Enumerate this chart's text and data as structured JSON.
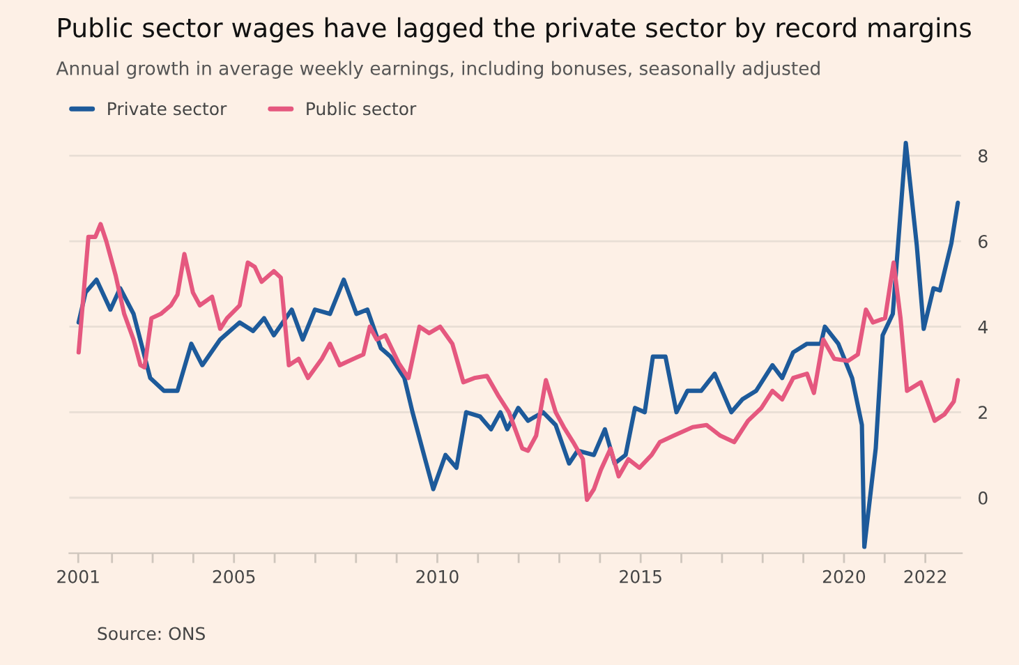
{
  "chart_data": {
    "type": "line",
    "title": "Public sector wages have lagged the private sector by record margins",
    "subtitle": "Annual growth in average weekly earnings, including bonuses, seasonally adjusted",
    "series": [
      {
        "name": "Private sector",
        "color": "#1d5a9a",
        "x": [
          2001.18,
          2001.35,
          2001.62,
          2001.96,
          2002.2,
          2002.53,
          2002.94,
          2003.28,
          2003.61,
          2003.95,
          2004.22,
          2004.66,
          2005.14,
          2005.47,
          2005.74,
          2005.98,
          2006.42,
          2006.69,
          2006.99,
          2007.36,
          2007.7,
          2008.01,
          2008.28,
          2008.61,
          2008.85,
          2009.19,
          2009.39,
          2009.7,
          2009.9,
          2010.2,
          2010.47,
          2010.71,
          2011.05,
          2011.32,
          2011.55,
          2011.72,
          2011.99,
          2012.23,
          2012.6,
          2012.91,
          2013.24,
          2013.45,
          2013.85,
          2014.12,
          2014.36,
          2014.63,
          2014.86,
          2015.1,
          2015.3,
          2015.61,
          2015.88,
          2016.15,
          2016.49,
          2016.82,
          2017.23,
          2017.5,
          2017.84,
          2018.24,
          2018.48,
          2018.75,
          2019.09,
          2019.43,
          2019.53,
          2019.86,
          2020.2,
          2020.44,
          2020.5,
          2020.78,
          2020.95,
          2021.2,
          2021.52,
          2021.79,
          2021.96,
          2022.2,
          2022.36,
          2022.64,
          2022.8
        ],
        "values": [
          4.1,
          4.8,
          5.1,
          4.4,
          4.9,
          4.3,
          2.8,
          2.5,
          2.5,
          3.6,
          3.1,
          3.7,
          4.1,
          3.9,
          4.2,
          3.8,
          4.4,
          3.7,
          4.4,
          4.3,
          5.1,
          4.3,
          4.4,
          3.5,
          3.3,
          2.8,
          2.0,
          0.9,
          0.2,
          1.0,
          0.7,
          2.0,
          1.9,
          1.6,
          2.0,
          1.6,
          2.1,
          1.8,
          2.0,
          1.7,
          0.8,
          1.1,
          1.0,
          1.6,
          0.8,
          1.0,
          2.1,
          2.0,
          3.3,
          3.3,
          2.0,
          2.5,
          2.5,
          2.9,
          2.0,
          2.3,
          2.5,
          3.1,
          2.8,
          3.4,
          3.6,
          3.6,
          4.0,
          3.6,
          2.8,
          1.7,
          -1.15,
          1.15,
          3.8,
          4.3,
          8.3,
          5.9,
          3.95,
          4.9,
          4.85,
          5.95,
          6.9
        ]
      },
      {
        "name": "Public sector",
        "color": "#e5587f",
        "x": [
          2001.18,
          2001.42,
          2001.59,
          2001.72,
          2001.86,
          2002.09,
          2002.3,
          2002.53,
          2002.7,
          2002.8,
          2002.97,
          2003.2,
          2003.45,
          2003.61,
          2003.78,
          2003.99,
          2004.16,
          2004.46,
          2004.66,
          2004.83,
          2005.14,
          2005.34,
          2005.51,
          2005.68,
          2005.98,
          2006.15,
          2006.35,
          2006.59,
          2006.82,
          2007.16,
          2007.36,
          2007.6,
          2007.94,
          2008.18,
          2008.34,
          2008.51,
          2008.72,
          2009.05,
          2009.29,
          2009.56,
          2009.8,
          2010.07,
          2010.37,
          2010.64,
          2010.91,
          2011.22,
          2011.49,
          2011.76,
          2012.09,
          2012.23,
          2012.43,
          2012.67,
          2012.91,
          2013.11,
          2013.34,
          2013.58,
          2013.68,
          2013.85,
          2014.02,
          2014.26,
          2014.46,
          2014.7,
          2014.97,
          2015.27,
          2015.47,
          2015.81,
          2016.28,
          2016.62,
          2016.96,
          2017.3,
          2017.64,
          2017.97,
          2018.24,
          2018.48,
          2018.75,
          2019.09,
          2019.26,
          2019.49,
          2019.76,
          2020.1,
          2020.34,
          2020.54,
          2020.71,
          2021.01,
          2021.22,
          2021.39,
          2021.55,
          2021.89,
          2022.23,
          2022.47,
          2022.7,
          2022.8
        ],
        "values": [
          3.4,
          6.1,
          6.1,
          6.4,
          6.0,
          5.2,
          4.3,
          3.7,
          3.1,
          3.05,
          4.2,
          4.3,
          4.5,
          4.75,
          5.7,
          4.8,
          4.5,
          4.7,
          3.95,
          4.2,
          4.5,
          5.5,
          5.4,
          5.05,
          5.3,
          5.15,
          3.1,
          3.25,
          2.8,
          3.25,
          3.6,
          3.1,
          3.25,
          3.35,
          4.0,
          3.7,
          3.8,
          3.15,
          2.8,
          4.0,
          3.85,
          4.0,
          3.6,
          2.7,
          2.8,
          2.85,
          2.4,
          2.0,
          1.15,
          1.1,
          1.45,
          2.75,
          2.0,
          1.65,
          1.3,
          0.9,
          -0.05,
          0.2,
          0.65,
          1.15,
          0.5,
          0.9,
          0.7,
          1.0,
          1.3,
          1.45,
          1.65,
          1.7,
          1.45,
          1.3,
          1.8,
          2.1,
          2.5,
          2.3,
          2.8,
          2.9,
          2.45,
          3.7,
          3.25,
          3.2,
          3.35,
          4.4,
          4.1,
          4.2,
          5.5,
          4.2,
          2.5,
          2.7,
          1.8,
          1.95,
          2.25,
          2.75
        ]
      }
    ],
    "xlim": [
      2000.95,
      2022.9
    ],
    "xticks": [
      {
        "value": 2001.17,
        "label": "2001"
      },
      {
        "value": 2002,
        "label": null
      },
      {
        "value": 2003,
        "label": null
      },
      {
        "value": 2004,
        "label": null
      },
      2005,
      {
        "value": 2006,
        "label": null
      },
      {
        "value": 2007,
        "label": null
      },
      {
        "value": 2008,
        "label": null
      },
      {
        "value": 2009,
        "label": null
      },
      2010,
      {
        "value": 2011,
        "label": null
      },
      {
        "value": 2012,
        "label": null
      },
      {
        "value": 2013,
        "label": null
      },
      {
        "value": 2014,
        "label": null
      },
      2015,
      {
        "value": 2016,
        "label": null
      },
      {
        "value": 2017,
        "label": null
      },
      {
        "value": 2018,
        "label": null
      },
      {
        "value": 2019,
        "label": null
      },
      2020,
      {
        "value": 2021,
        "label": null
      },
      2022
    ],
    "ylim": [
      -1.3,
      8.5
    ],
    "yticks": [
      0,
      2,
      4,
      6,
      8
    ],
    "grid": "y",
    "legend": "top left",
    "line_style": "solid",
    "annotations": [
      "Source: ONS"
    ]
  }
}
